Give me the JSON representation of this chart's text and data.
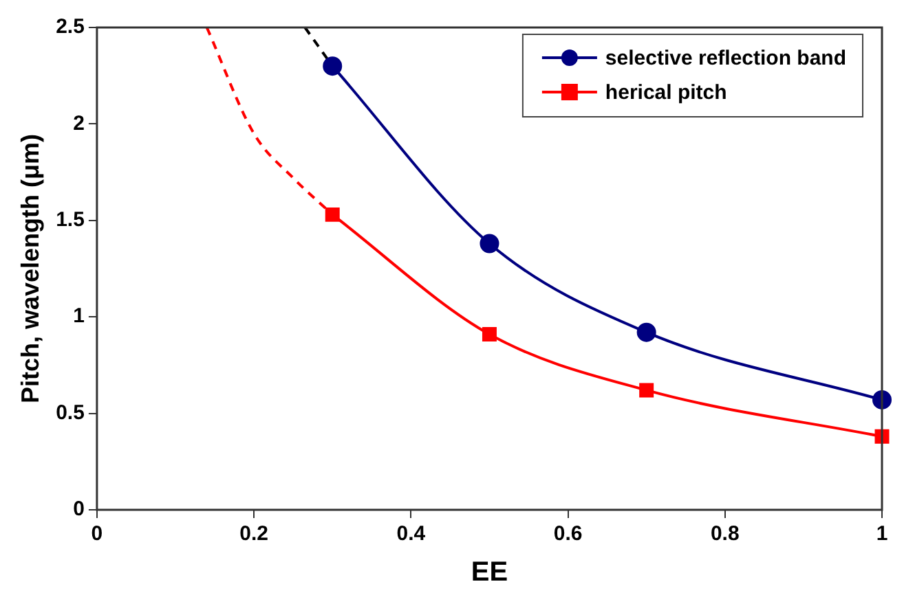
{
  "chart_data": {
    "type": "line",
    "xlabel": "EE",
    "ylabel": "Pitch, wavelength (μm)",
    "xlim": [
      0,
      1
    ],
    "xticks": [
      0,
      0.2,
      0.4,
      0.6,
      0.8,
      {
        "value": 1,
        "label": "1"
      }
    ],
    "ylim": [
      0,
      2.5
    ],
    "yticks": [
      0,
      0.5,
      1,
      1.5,
      2,
      2.5
    ],
    "grid": false,
    "legend": "top right",
    "series": [
      {
        "name": "selective reflection band",
        "color": "#000080",
        "marker": "circle",
        "line_style": "solid",
        "x": [
          0.3,
          0.5,
          0.7,
          1.0
        ],
        "values": [
          2.3,
          1.38,
          0.92,
          0.57
        ]
      },
      {
        "name": "herical pitch",
        "color": "#ff0000",
        "marker": "square",
        "line_style": "solid",
        "x": [
          0.3,
          0.5,
          0.7,
          1.0
        ],
        "values": [
          1.53,
          0.91,
          0.62,
          0.38
        ]
      },
      {
        "color": "#000000",
        "marker": "none",
        "line_style": "dashed",
        "x": [
          0.265,
          0.3
        ],
        "values": [
          2.5,
          2.3
        ]
      },
      {
        "color": "#ff0000",
        "marker": "none",
        "line_style": "dashed",
        "x": [
          0.14,
          0.2,
          0.25,
          0.3
        ],
        "values": [
          2.5,
          1.95,
          1.72,
          1.53
        ]
      }
    ]
  }
}
